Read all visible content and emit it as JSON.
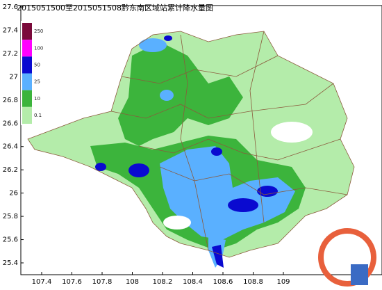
{
  "title": "2015051500至2015051508黔东南区域站累计降水量图",
  "legend": [
    {
      "label": "250",
      "color": "#7a0a3a"
    },
    {
      "label": "100",
      "color": "#ff00ff"
    },
    {
      "label": "50",
      "color": "#0a0ad0"
    },
    {
      "label": "25",
      "color": "#5ab0ff"
    },
    {
      "label": "10",
      "color": "#3cb43c"
    },
    {
      "label": "0.1",
      "color": "#b4ecaa"
    }
  ],
  "lat_ticks": [
    27.6,
    27.4,
    27.2,
    27,
    26.8,
    26.6,
    26.4,
    26.2,
    26,
    25.8,
    25.6,
    25.4
  ],
  "lon_ticks": [
    107.4,
    107.6,
    107.8,
    108,
    108.2,
    108.4,
    108.6,
    108.8,
    109
  ]
}
